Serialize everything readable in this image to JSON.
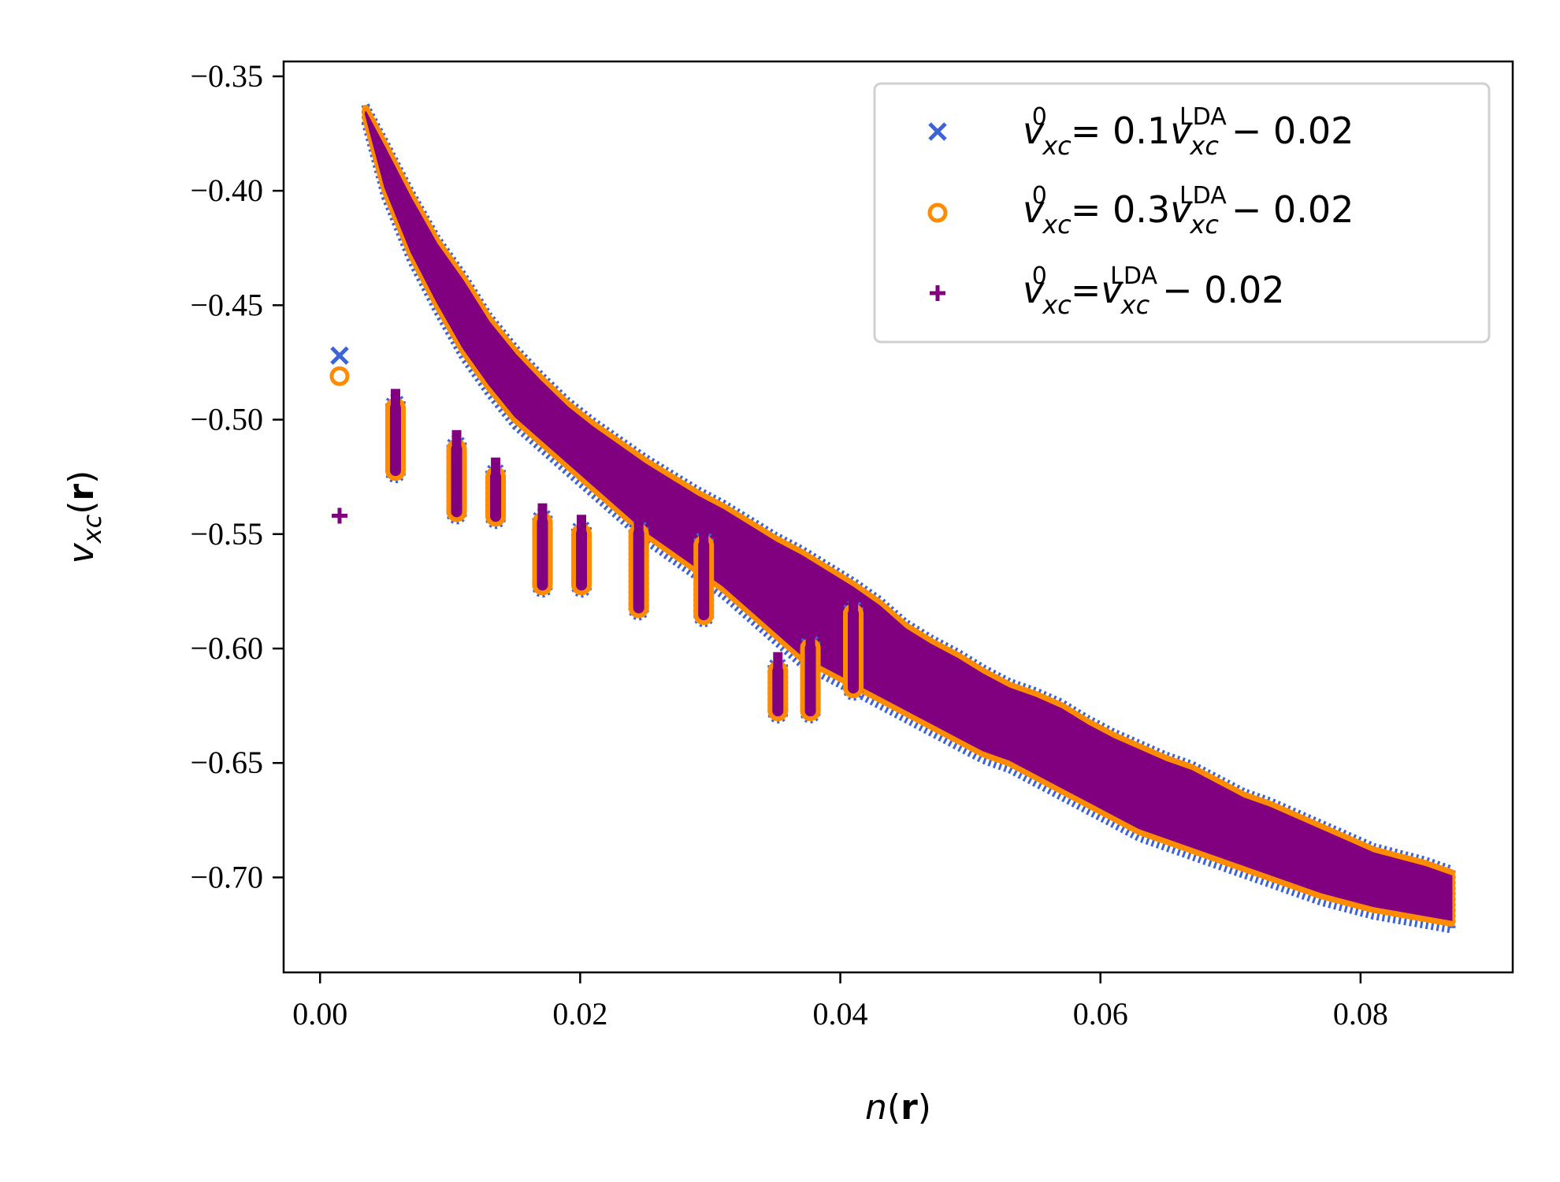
{
  "chart_data": {
    "type": "scatter",
    "title": "",
    "xlabel": {
      "pre": "n",
      "open": "(",
      "bold": "r",
      "close": ")"
    },
    "ylabel": {
      "v": "v",
      "sub": "xc",
      "open": "(",
      "bold": "r",
      "close": ")"
    },
    "xlim": [
      -0.0028,
      0.0917
    ],
    "ylim": [
      -0.7415,
      -0.3435
    ],
    "xticks": [
      0.0,
      0.02,
      0.04,
      0.06,
      0.08
    ],
    "xtick_labels": [
      "0.00",
      "0.02",
      "0.04",
      "0.06",
      "0.08"
    ],
    "yticks": [
      -0.35,
      -0.4,
      -0.45,
      -0.5,
      -0.55,
      -0.6,
      -0.65,
      -0.7
    ],
    "ytick_labels": [
      "−0.35",
      "−0.40",
      "−0.45",
      "−0.50",
      "−0.55",
      "−0.60",
      "−0.65",
      "−0.70"
    ],
    "grid": false,
    "legend_position": "top-right",
    "main_band": {
      "x": [
        0.0035,
        0.005,
        0.007,
        0.009,
        0.011,
        0.013,
        0.015,
        0.017,
        0.019,
        0.021,
        0.023,
        0.025,
        0.027,
        0.029,
        0.031,
        0.033,
        0.035,
        0.037,
        0.039,
        0.041,
        0.043,
        0.045,
        0.047,
        0.049,
        0.051,
        0.053,
        0.055,
        0.057,
        0.059,
        0.061,
        0.063,
        0.065,
        0.067,
        0.069,
        0.071,
        0.073,
        0.075,
        0.077,
        0.079,
        0.081,
        0.083,
        0.085,
        0.087
      ],
      "upper": [
        -0.364,
        -0.38,
        -0.402,
        -0.422,
        -0.438,
        -0.456,
        -0.47,
        -0.482,
        -0.493,
        -0.502,
        -0.51,
        -0.518,
        -0.525,
        -0.532,
        -0.538,
        -0.545,
        -0.552,
        -0.558,
        -0.565,
        -0.572,
        -0.58,
        -0.59,
        -0.597,
        -0.603,
        -0.61,
        -0.616,
        -0.62,
        -0.625,
        -0.632,
        -0.638,
        -0.643,
        -0.648,
        -0.652,
        -0.658,
        -0.664,
        -0.668,
        -0.673,
        -0.678,
        -0.683,
        -0.688,
        -0.691,
        -0.694,
        -0.698
      ],
      "lower": [
        -0.368,
        -0.4,
        -0.428,
        -0.45,
        -0.47,
        -0.486,
        -0.5,
        -0.51,
        -0.52,
        -0.53,
        -0.54,
        -0.55,
        -0.558,
        -0.566,
        -0.574,
        -0.584,
        -0.594,
        -0.604,
        -0.61,
        -0.616,
        -0.622,
        -0.628,
        -0.634,
        -0.64,
        -0.646,
        -0.65,
        -0.656,
        -0.662,
        -0.668,
        -0.674,
        -0.68,
        -0.684,
        -0.688,
        -0.692,
        -0.696,
        -0.7,
        -0.704,
        -0.708,
        -0.711,
        -0.714,
        -0.716,
        -0.718,
        -0.72
      ]
    },
    "clusters": [
      {
        "x": 0.0058,
        "ymin": -0.525,
        "ymax": -0.49
      },
      {
        "x": 0.0105,
        "ymin": -0.543,
        "ymax": -0.508
      },
      {
        "x": 0.0135,
        "ymin": -0.545,
        "ymax": -0.52
      },
      {
        "x": 0.0171,
        "ymin": -0.575,
        "ymax": -0.54
      },
      {
        "x": 0.0201,
        "ymin": -0.575,
        "ymax": -0.545
      },
      {
        "x": 0.0245,
        "ymin": -0.585,
        "ymax": -0.545
      },
      {
        "x": 0.0295,
        "ymin": -0.588,
        "ymax": -0.55
      },
      {
        "x": 0.0352,
        "ymin": -0.63,
        "ymax": -0.605
      },
      {
        "x": 0.0377,
        "ymin": -0.63,
        "ymax": -0.595
      },
      {
        "x": 0.041,
        "ymin": -0.62,
        "ymax": -0.58
      }
    ],
    "series": [
      {
        "name": {
          "v": "v",
          "sub": "xc",
          "sup": "0",
          "rhs": "= 0.1",
          "sup2": "LDA",
          "tail": "− 0.02"
        },
        "marker": "x",
        "color": "#3c64d8",
        "outliers": [
          [
            0.0015,
            -0.472
          ]
        ]
      },
      {
        "name": {
          "v": "v",
          "sub": "xc",
          "sup": "0",
          "rhs": "= 0.3",
          "sup2": "LDA",
          "tail": "− 0.02"
        },
        "marker": "o",
        "color": "#ff8c00",
        "outliers": [
          [
            0.0015,
            -0.481
          ]
        ]
      },
      {
        "name": {
          "v": "v",
          "sub": "xc",
          "sup": "0",
          "rhs": "=",
          "sup2": "LDA",
          "tail": "− 0.02"
        },
        "marker": "+",
        "color": "#800080",
        "outliers": [
          [
            0.0015,
            -0.542
          ]
        ]
      }
    ]
  }
}
